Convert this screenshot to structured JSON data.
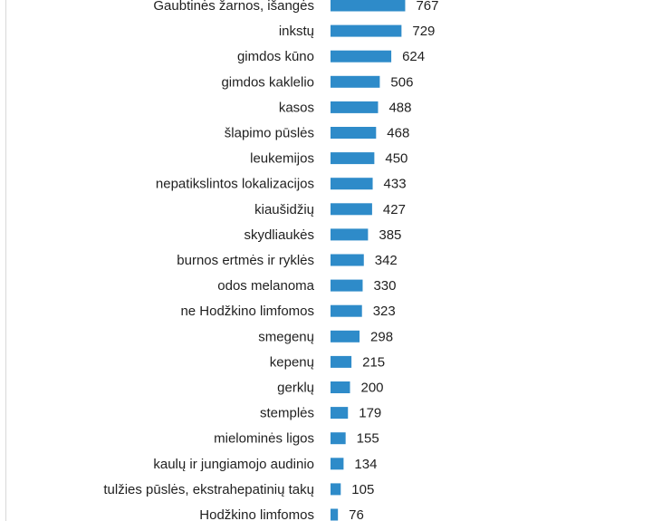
{
  "chart_data": {
    "type": "bar",
    "orientation": "horizontal",
    "title": "",
    "xlabel": "",
    "ylabel": "",
    "grid": false,
    "bar_color": "#2e8bc9",
    "xlim": [
      0,
      800
    ],
    "categories": [
      "Gaubtinės žarnos, išangės",
      "inkstų",
      "gimdos kūno",
      "gimdos kaklelio",
      "kasos",
      "šlapimo pūslės",
      "leukemijos",
      "nepatikslintos lokalizacijos",
      "kiaušidžių",
      "skydliaukės",
      "burnos ertmės ir ryklės",
      "odos melanoma",
      "ne Hodžkino limfomos",
      "smegenų",
      "kepenų",
      "gerklų",
      "stemplės",
      "mielominės ligos",
      "kaulų ir jungiamojo audinio",
      "tulžies pūslės, ekstrahepatinių takų",
      "Hodžkino limfomos"
    ],
    "values": [
      767,
      729,
      624,
      506,
      488,
      468,
      450,
      433,
      427,
      385,
      342,
      330,
      323,
      298,
      215,
      200,
      179,
      155,
      134,
      105,
      76
    ]
  }
}
